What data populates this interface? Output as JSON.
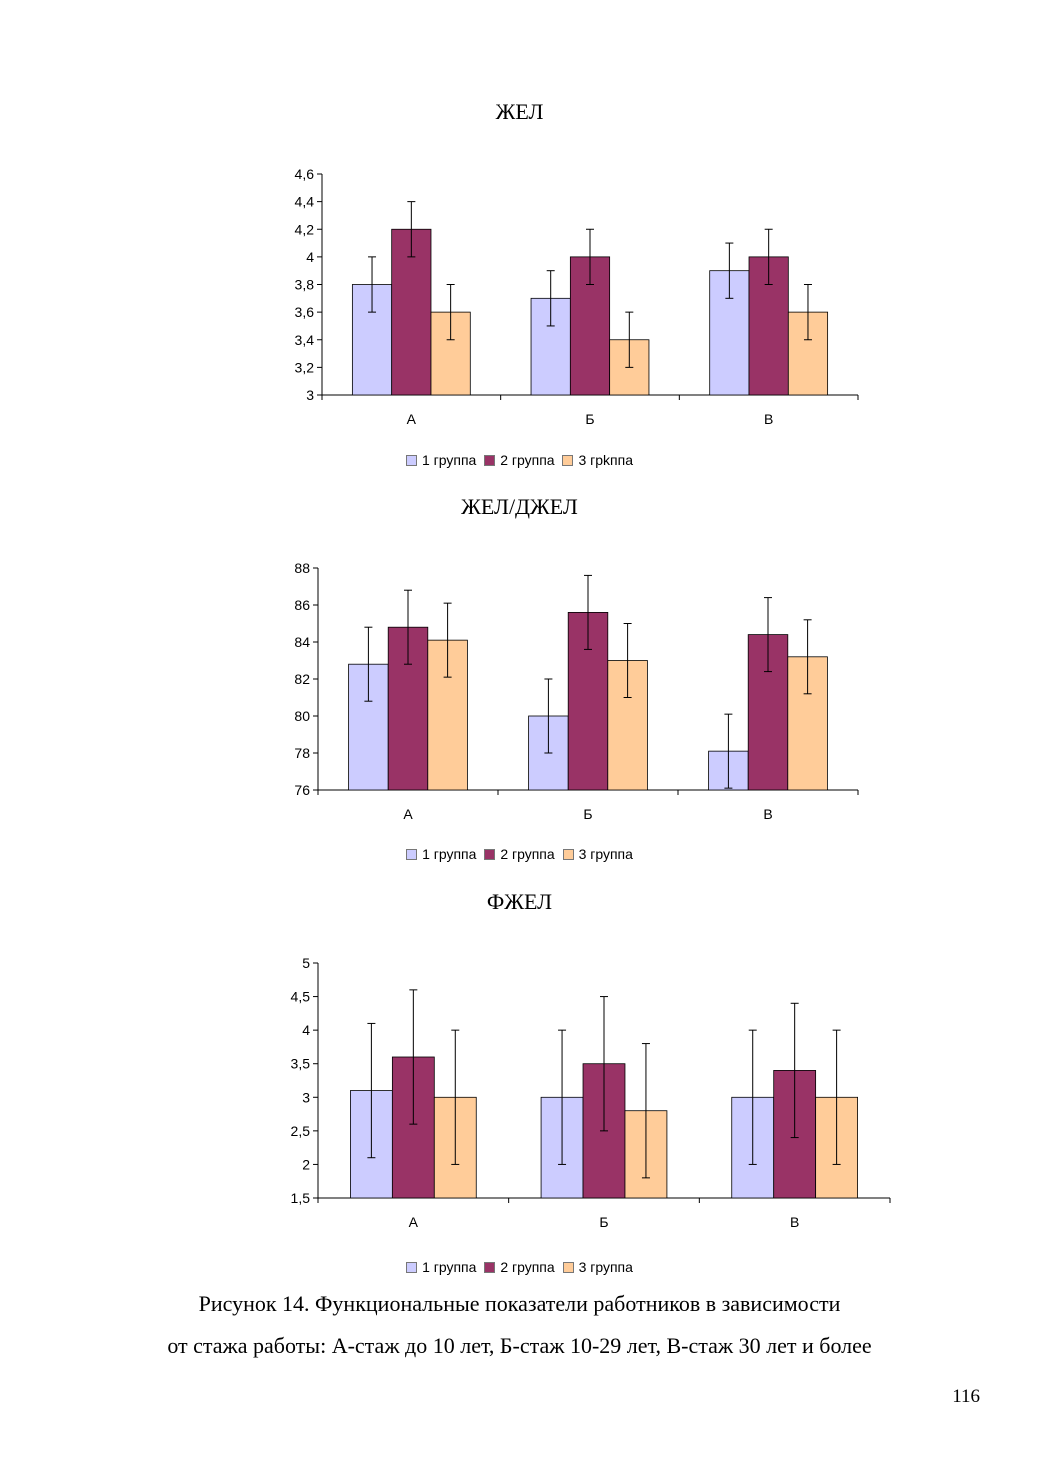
{
  "chart_data": [
    {
      "type": "bar",
      "title": "ЖЕЛ",
      "categories": [
        "А",
        "Б",
        "В"
      ],
      "series": [
        {
          "name": "1 группа",
          "color": "#ccccff",
          "values": [
            3.8,
            3.7,
            3.9
          ],
          "errors": [
            0.2,
            0.2,
            0.2
          ]
        },
        {
          "name": "2 группа",
          "color": "#993366",
          "values": [
            4.2,
            4.0,
            4.0
          ],
          "errors": [
            0.2,
            0.2,
            0.2
          ]
        },
        {
          "name": "3 грkппа",
          "color": "#ffcc99",
          "values": [
            3.6,
            3.4,
            3.6
          ],
          "errors": [
            0.2,
            0.2,
            0.2
          ]
        }
      ],
      "ylim": [
        3,
        4.6
      ],
      "yticks": [
        "3",
        "3,2",
        "3,4",
        "3,6",
        "3,8",
        "4",
        "4,2",
        "4,4",
        "4,6"
      ],
      "legend_position": "bottom",
      "grid": false
    },
    {
      "type": "bar",
      "title": "ЖЕЛ/ДЖЕЛ",
      "categories": [
        "А",
        "Б",
        "В"
      ],
      "series": [
        {
          "name": "1 группа",
          "color": "#ccccff",
          "values": [
            82.8,
            80.0,
            78.1
          ],
          "errors": [
            2.0,
            2.0,
            2.0
          ]
        },
        {
          "name": "2 группа",
          "color": "#993366",
          "values": [
            84.8,
            85.6,
            84.4
          ],
          "errors": [
            2.0,
            2.0,
            2.0
          ]
        },
        {
          "name": "3 группа",
          "color": "#ffcc99",
          "values": [
            84.1,
            83.0,
            83.2
          ],
          "errors": [
            2.0,
            2.0,
            2.0
          ]
        }
      ],
      "ylim": [
        76,
        88
      ],
      "yticks": [
        "76",
        "78",
        "80",
        "82",
        "84",
        "86",
        "88"
      ],
      "legend_position": "bottom",
      "grid": false
    },
    {
      "type": "bar",
      "title": "ФЖЕЛ",
      "categories": [
        "А",
        "Б",
        "В"
      ],
      "series": [
        {
          "name": "1 группа",
          "color": "#ccccff",
          "values": [
            3.1,
            3.0,
            3.0
          ],
          "errors": [
            1.0,
            1.0,
            1.0
          ]
        },
        {
          "name": "2 группа",
          "color": "#993366",
          "values": [
            3.6,
            3.5,
            3.4
          ],
          "errors": [
            1.0,
            1.0,
            1.0
          ]
        },
        {
          "name": "3 группа",
          "color": "#ffcc99",
          "values": [
            3.0,
            2.8,
            3.0
          ],
          "errors": [
            1.0,
            1.0,
            1.0
          ]
        }
      ],
      "ylim": [
        1.5,
        5
      ],
      "yticks": [
        "1,5",
        "2",
        "2,5",
        "3",
        "3,5",
        "4",
        "4,5",
        "5"
      ],
      "legend_position": "bottom",
      "grid": false
    }
  ],
  "caption": {
    "line1": "Рисунок 14. Функциональные показатели работников в зависимости",
    "line2": "от стажа работы: А-стаж до 10 лет, Б-стаж 10-29 лет, В-стаж 30 лет и более"
  },
  "page_number": "116"
}
